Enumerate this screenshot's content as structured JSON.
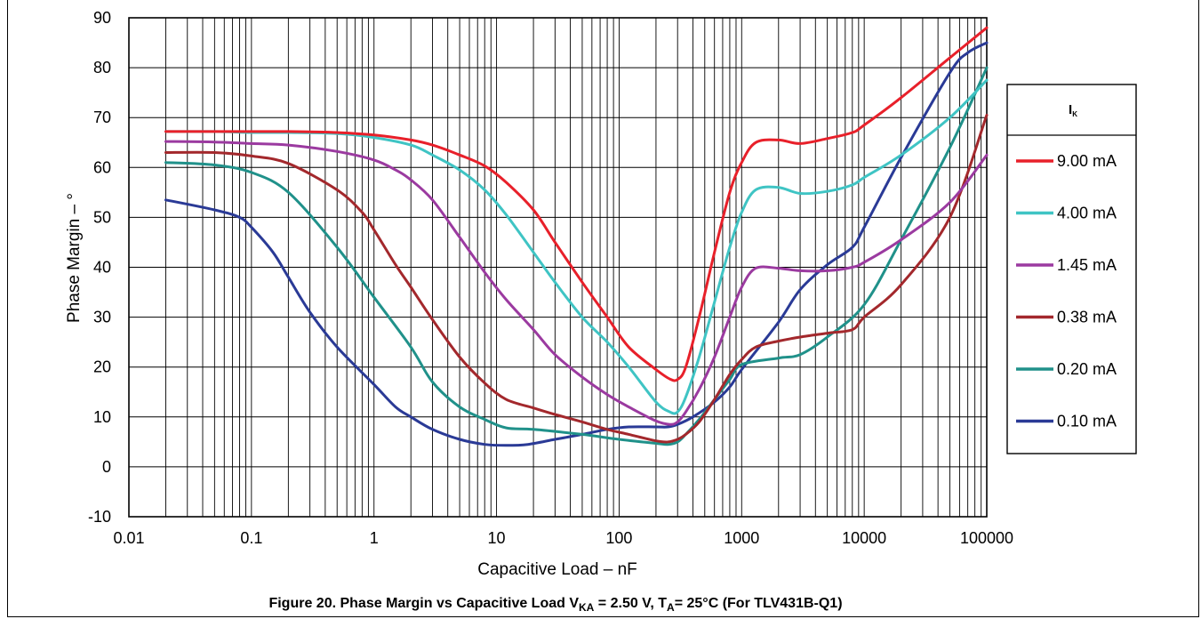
{
  "chart_data": {
    "type": "line",
    "xlabel": "Capacitive Load – nF",
    "ylabel": "Phase Margin – °",
    "x_scale": "log",
    "xlim": [
      0.01,
      100000
    ],
    "ylim": [
      -10,
      90
    ],
    "x_ticks": [
      "0.01",
      "0.1",
      "1",
      "10",
      "100",
      "1000",
      "10000",
      "100000"
    ],
    "y_ticks": [
      "-10",
      "0",
      "10",
      "20",
      "30",
      "40",
      "50",
      "60",
      "70",
      "80",
      "90"
    ],
    "grid": true,
    "legend_title": "I",
    "legend_title_sub": "K",
    "legend_position": "right",
    "caption": {
      "prefix": "Figure 20. Phase Margin vs Capacitive Load V",
      "sub1": "KA",
      "mid": " = 2.50 V, T",
      "sub2": "A",
      "suffix": "= 25°C (For TLV431B-Q1)"
    },
    "series": [
      {
        "name": "9.00 mA",
        "color": "#e8202a",
        "x": [
          0.02,
          0.05,
          0.1,
          0.2,
          0.5,
          1,
          2,
          3,
          5,
          8,
          12,
          20,
          30,
          50,
          80,
          120,
          200,
          260,
          300,
          350,
          450,
          600,
          800,
          1000,
          1300,
          2000,
          3000,
          5000,
          8000,
          10000,
          20000,
          50000,
          100000
        ],
        "y": [
          67.2,
          67.2,
          67.2,
          67.2,
          67.0,
          66.5,
          65.5,
          64.5,
          62.5,
          60.3,
          57.0,
          51.5,
          45.0,
          37.0,
          30.0,
          24.0,
          19.5,
          17.6,
          17.5,
          20.0,
          30.0,
          43.0,
          55.0,
          61.0,
          65.0,
          65.5,
          64.8,
          65.8,
          67.0,
          68.5,
          74.0,
          82.0,
          88.0
        ]
      },
      {
        "name": "4.00 mA",
        "color": "#3fc4c4",
        "x": [
          0.02,
          0.05,
          0.1,
          0.2,
          0.5,
          1,
          2,
          3,
          5,
          8,
          12,
          20,
          30,
          50,
          80,
          120,
          200,
          260,
          300,
          350,
          450,
          600,
          800,
          1000,
          1300,
          2000,
          3000,
          5000,
          8000,
          10000,
          20000,
          50000,
          100000
        ],
        "y": [
          67.2,
          67.2,
          67.0,
          67.0,
          66.8,
          66.0,
          64.5,
          62.5,
          59.5,
          55.5,
          50.5,
          43.0,
          37.0,
          30.0,
          25.0,
          20.0,
          13.0,
          11.0,
          11.0,
          14.0,
          22.0,
          33.0,
          44.0,
          51.0,
          55.5,
          56.0,
          54.8,
          55.2,
          56.5,
          58.0,
          62.5,
          70.0,
          77.5
        ]
      },
      {
        "name": "1.45 mA",
        "color": "#9b3aa0",
        "x": [
          0.02,
          0.05,
          0.1,
          0.2,
          0.5,
          1,
          1.5,
          2,
          3,
          5,
          8,
          12,
          20,
          30,
          50,
          80,
          120,
          200,
          260,
          300,
          350,
          450,
          600,
          800,
          1000,
          1300,
          2000,
          3000,
          5000,
          8000,
          10000,
          20000,
          50000,
          100000
        ],
        "y": [
          65.2,
          65.1,
          64.8,
          64.5,
          63.2,
          61.5,
          59.5,
          57.5,
          53.5,
          46.0,
          39.0,
          33.5,
          27.5,
          22.5,
          18.0,
          14.5,
          12.0,
          9.2,
          8.5,
          9.0,
          11.0,
          15.5,
          22.0,
          30.0,
          36.0,
          39.8,
          39.8,
          39.3,
          39.3,
          40.0,
          41.0,
          45.5,
          53.0,
          62.5
        ]
      },
      {
        "name": "0.38 mA",
        "color": "#a3282c",
        "x": [
          0.02,
          0.05,
          0.1,
          0.2,
          0.5,
          0.8,
          1,
          1.5,
          2,
          3,
          5,
          8,
          12,
          20,
          30,
          50,
          80,
          120,
          200,
          250,
          300,
          350,
          450,
          600,
          800,
          1000,
          1300,
          2000,
          3000,
          5000,
          8000,
          10000,
          20000,
          50000,
          100000
        ],
        "y": [
          63.0,
          63.0,
          62.3,
          60.8,
          55.5,
          51.0,
          47.5,
          40.5,
          36.0,
          29.5,
          22.0,
          16.8,
          13.5,
          11.8,
          10.5,
          9.0,
          7.5,
          6.5,
          5.2,
          5.0,
          5.5,
          6.5,
          9.0,
          13.5,
          18.5,
          21.5,
          24.0,
          25.2,
          26.0,
          26.8,
          27.5,
          30.0,
          36.5,
          50.0,
          70.5
        ]
      },
      {
        "name": "0.20 mA",
        "color": "#20918a",
        "x": [
          0.02,
          0.05,
          0.1,
          0.2,
          0.5,
          1,
          2,
          3,
          5,
          8,
          12,
          20,
          50,
          100,
          200,
          250,
          300,
          350,
          450,
          600,
          800,
          1000,
          2000,
          3000,
          5000,
          10000,
          20000,
          50000,
          100000
        ],
        "y": [
          61.0,
          60.5,
          59.0,
          55.0,
          44.0,
          34.0,
          24.0,
          17.0,
          12.0,
          9.5,
          7.8,
          7.5,
          6.5,
          5.5,
          4.7,
          4.5,
          5.0,
          6.5,
          9.5,
          13.5,
          17.5,
          20.5,
          21.8,
          22.5,
          26.0,
          32.5,
          45.5,
          64.0,
          80.0
        ]
      },
      {
        "name": "0.10 mA",
        "color": "#2a3a96",
        "x": [
          0.02,
          0.05,
          0.08,
          0.1,
          0.15,
          0.2,
          0.3,
          0.5,
          1,
          1.5,
          2,
          3,
          5,
          8,
          12,
          18,
          30,
          50,
          80,
          120,
          200,
          250,
          300,
          400,
          600,
          800,
          1000,
          2000,
          3000,
          5000,
          8000,
          10000,
          20000,
          50000,
          70000,
          100000
        ],
        "y": [
          53.5,
          51.5,
          50.0,
          48.0,
          43.0,
          38.0,
          31.0,
          24.0,
          16.5,
          12.0,
          10.0,
          7.5,
          5.5,
          4.5,
          4.3,
          4.5,
          5.5,
          6.5,
          7.5,
          8.0,
          8.0,
          8.0,
          8.5,
          10.0,
          13.0,
          16.0,
          19.5,
          29.0,
          35.5,
          40.5,
          44.0,
          48.0,
          62.0,
          79.0,
          83.0,
          85.0
        ]
      }
    ]
  }
}
